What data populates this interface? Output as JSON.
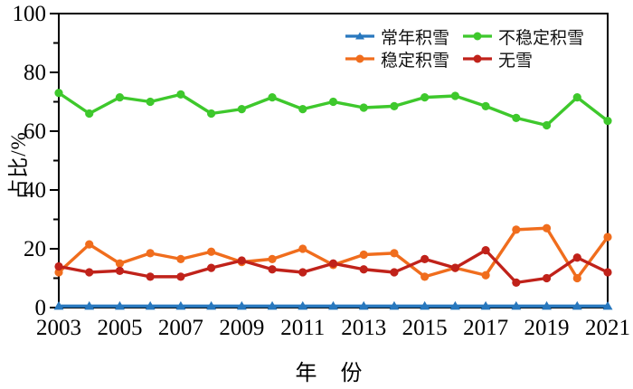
{
  "chart_data": {
    "type": "line",
    "title": "",
    "xlabel": "年 份",
    "ylabel": "占比/%",
    "ylim": [
      0,
      100
    ],
    "y_major_ticks": [
      0,
      20,
      40,
      60,
      80,
      100
    ],
    "y_minor_step": 10,
    "grid": "off",
    "legend_position": "top-right-inside",
    "x": [
      2003,
      2004,
      2005,
      2006,
      2007,
      2008,
      2009,
      2010,
      2011,
      2012,
      2013,
      2014,
      2015,
      2016,
      2017,
      2018,
      2019,
      2020,
      2021
    ],
    "x_tick_labels": [
      "2003",
      "2005",
      "2007",
      "2009",
      "2011",
      "2013",
      "2015",
      "2017",
      "2019",
      "2021"
    ],
    "legend_rows": [
      [
        "常年积雪",
        "不稳定积雪"
      ],
      [
        "稳定积雪",
        "无雪"
      ]
    ],
    "series": [
      {
        "name": "常年积雪",
        "color": "#2878be",
        "marker": "triangle",
        "values": [
          0.5,
          0.5,
          0.5,
          0.5,
          0.5,
          0.5,
          0.5,
          0.5,
          0.5,
          0.5,
          0.5,
          0.5,
          0.5,
          0.5,
          0.5,
          0.5,
          0.5,
          0.5,
          0.5
        ]
      },
      {
        "name": "稳定积雪",
        "color": "#f06d1d",
        "marker": "circle",
        "values": [
          12,
          21.5,
          15,
          18.5,
          16.5,
          19,
          15.5,
          16.5,
          20,
          14.5,
          18,
          18.5,
          10.5,
          13.5,
          11,
          26.5,
          27,
          10,
          24
        ]
      },
      {
        "name": "无雪",
        "color": "#c0221a",
        "marker": "circle",
        "values": [
          14,
          12,
          12.5,
          10.5,
          10.5,
          13.5,
          16,
          13,
          12,
          15,
          13,
          12,
          16.5,
          13.5,
          19.5,
          8.5,
          10,
          17,
          12
        ]
      },
      {
        "name": "不稳定积雪",
        "color": "#3ec82c",
        "marker": "circle",
        "values": [
          73,
          66,
          71.5,
          70,
          72.5,
          66,
          67.5,
          71.5,
          67.5,
          70,
          68,
          68.5,
          71.5,
          72,
          68.5,
          64.5,
          62,
          71.5,
          63.5
        ]
      }
    ]
  }
}
